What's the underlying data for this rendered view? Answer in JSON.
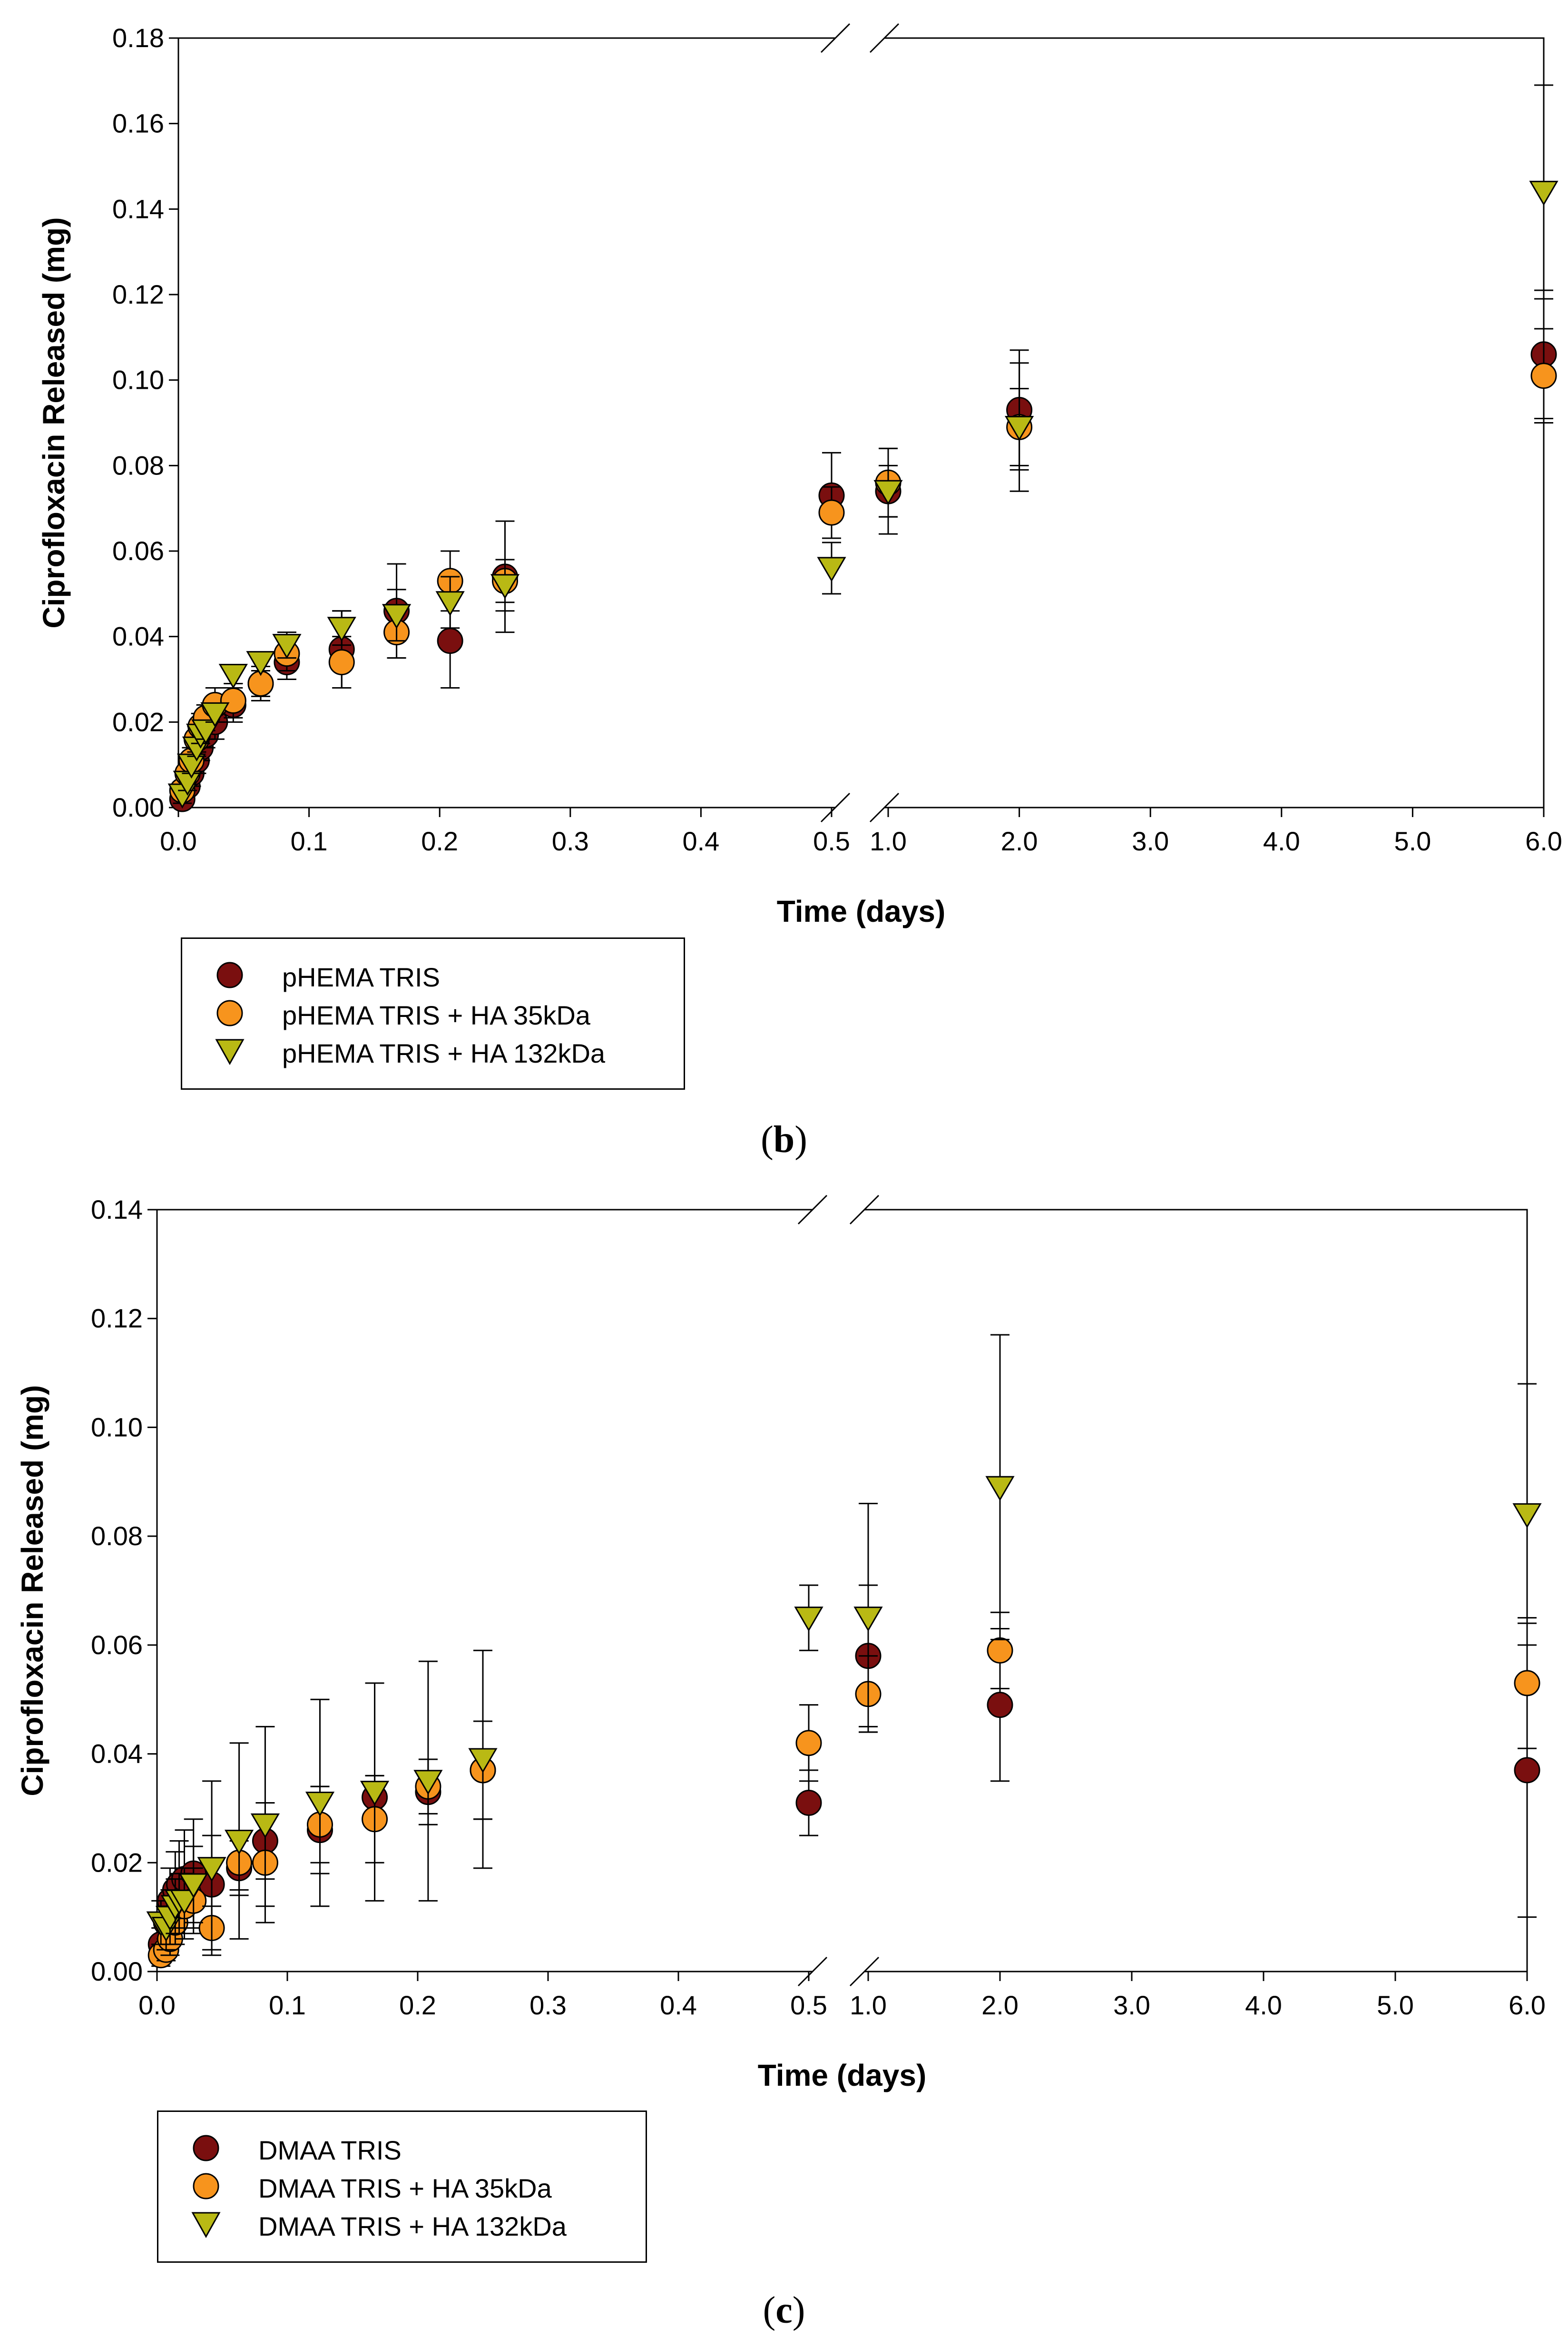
{
  "chart_data": [
    {
      "type": "scatter",
      "panel_label": "b",
      "xlabel": "Time (days)",
      "ylabel": "Ciprofloxacin Released (mg)",
      "ylim": [
        0,
        0.18
      ],
      "yticks": [
        "0.00",
        "0.02",
        "0.04",
        "0.06",
        "0.08",
        "0.10",
        "0.12",
        "0.14",
        "0.16",
        "0.18"
      ],
      "x_axis": {
        "type": "broken",
        "segment1": {
          "range": [
            0,
            0.5
          ],
          "ticks": [
            "0.0",
            "0.1",
            "0.2",
            "0.3",
            "0.4",
            "0.5"
          ]
        },
        "segment2": {
          "range": [
            1,
            6
          ],
          "ticks": [
            "1.0",
            "2.0",
            "3.0",
            "4.0",
            "5.0",
            "6.0"
          ]
        }
      },
      "legend_position": "below",
      "series": [
        {
          "name": "pHEMA TRIS",
          "marker": "circle",
          "color": "#7a0f0f",
          "points": [
            [
              0.003,
              0.002,
              0.002
            ],
            [
              0.007,
              0.005,
              0.002
            ],
            [
              0.01,
              0.008,
              0.003
            ],
            [
              0.014,
              0.011,
              0.003
            ],
            [
              0.017,
              0.014,
              0.003
            ],
            [
              0.021,
              0.017,
              0.003
            ],
            [
              0.028,
              0.02,
              0.004
            ],
            [
              0.042,
              0.024,
              0.004
            ],
            [
              0.063,
              0.029,
              0.004
            ],
            [
              0.083,
              0.034,
              0.004
            ],
            [
              0.125,
              0.037,
              0.009
            ],
            [
              0.167,
              0.046,
              0.011
            ],
            [
              0.208,
              0.039,
              0.011
            ],
            [
              0.25,
              0.054,
              0.013
            ],
            [
              0.5,
              0.073,
              0.01
            ],
            [
              1,
              0.074,
              0.006
            ],
            [
              2,
              0.093,
              0.014
            ],
            [
              6,
              0.106,
              0.015
            ]
          ]
        },
        {
          "name": "pHEMA TRIS + HA 35kDa",
          "marker": "circle",
          "color": "#f7941d",
          "points": [
            [
              0.003,
              0.004,
              0.002
            ],
            [
              0.007,
              0.008,
              0.002
            ],
            [
              0.01,
              0.011,
              0.003
            ],
            [
              0.014,
              0.016,
              0.003
            ],
            [
              0.017,
              0.019,
              0.003
            ],
            [
              0.021,
              0.021,
              0.003
            ],
            [
              0.028,
              0.024,
              0.004
            ],
            [
              0.042,
              0.025,
              0.004
            ],
            [
              0.063,
              0.029,
              0.003
            ],
            [
              0.083,
              0.036,
              0.004
            ],
            [
              0.125,
              0.034,
              0.006
            ],
            [
              0.167,
              0.041,
              0.006
            ],
            [
              0.208,
              0.053,
              0.007
            ],
            [
              0.25,
              0.053,
              0.005
            ],
            [
              0.5,
              0.069,
              0.006
            ],
            [
              1,
              0.076,
              0.008
            ],
            [
              2,
              0.089,
              0.009
            ],
            [
              6,
              0.101,
              0.011
            ]
          ]
        },
        {
          "name": "pHEMA TRIS + HA 132kDa",
          "marker": "triangle-down",
          "color": "#b9b914",
          "points": [
            [
              0.003,
              0.003,
              0.002
            ],
            [
              0.007,
              0.006,
              0.002
            ],
            [
              0.01,
              0.01,
              0.002
            ],
            [
              0.014,
              0.014,
              0.002
            ],
            [
              0.017,
              0.017,
              0.002
            ],
            [
              0.021,
              0.018,
              0.002
            ],
            [
              0.028,
              0.022,
              0.002
            ],
            [
              0.042,
              0.031,
              0.002
            ],
            [
              0.063,
              0.034,
              0.002
            ],
            [
              0.083,
              0.038,
              0.003
            ],
            [
              0.125,
              0.042,
              0.004
            ],
            [
              0.167,
              0.045,
              0.006
            ],
            [
              0.208,
              0.048,
              0.006
            ],
            [
              0.25,
              0.052,
              0.006
            ],
            [
              0.5,
              0.056,
              0.006
            ],
            [
              1,
              0.074,
              0.01
            ],
            [
              2,
              0.089,
              0.015
            ],
            [
              6,
              0.144,
              0.025
            ]
          ]
        }
      ]
    },
    {
      "type": "scatter",
      "panel_label": "c",
      "xlabel": "Time (days)",
      "ylabel": "Ciprofloxacin Released (mg)",
      "ylim": [
        0,
        0.14
      ],
      "yticks": [
        "0.00",
        "0.02",
        "0.04",
        "0.06",
        "0.08",
        "0.10",
        "0.12",
        "0.14"
      ],
      "x_axis": {
        "type": "broken",
        "segment1": {
          "range": [
            0,
            0.5
          ],
          "ticks": [
            "0.0",
            "0.1",
            "0.2",
            "0.3",
            "0.4",
            "0.5"
          ]
        },
        "segment2": {
          "range": [
            1,
            6
          ],
          "ticks": [
            "1.0",
            "2.0",
            "3.0",
            "4.0",
            "5.0",
            "6.0"
          ]
        }
      },
      "legend_position": "below",
      "series": [
        {
          "name": "DMAA TRIS",
          "marker": "circle",
          "color": "#7a0f0f",
          "points": [
            [
              0.003,
              0.005,
              0.003
            ],
            [
              0.007,
              0.009,
              0.004
            ],
            [
              0.01,
              0.013,
              0.006
            ],
            [
              0.014,
              0.015,
              0.007
            ],
            [
              0.017,
              0.016,
              0.008
            ],
            [
              0.021,
              0.017,
              0.009
            ],
            [
              0.028,
              0.018,
              0.01
            ],
            [
              0.042,
              0.016,
              0.009
            ],
            [
              0.063,
              0.019,
              0.005
            ],
            [
              0.083,
              0.024,
              0.007
            ],
            [
              0.125,
              0.026,
              0.008
            ],
            [
              0.167,
              0.032,
              0.004
            ],
            [
              0.208,
              0.033,
              0.006
            ],
            [
              0.25,
              0.037,
              0.009
            ],
            [
              0.5,
              0.031,
              0.006
            ],
            [
              1,
              0.058,
              0.013
            ],
            [
              2,
              0.049,
              0.014
            ],
            [
              6,
              0.037,
              0.027
            ]
          ]
        },
        {
          "name": "DMAA TRIS + HA 35kDa",
          "marker": "circle",
          "color": "#f7941d",
          "points": [
            [
              0.003,
              0.003,
              0.002
            ],
            [
              0.007,
              0.004,
              0.002
            ],
            [
              0.01,
              0.006,
              0.003
            ],
            [
              0.014,
              0.009,
              0.004
            ],
            [
              0.017,
              0.012,
              0.005
            ],
            [
              0.021,
              0.012,
              0.006
            ],
            [
              0.028,
              0.013,
              0.006
            ],
            [
              0.042,
              0.008,
              0.004
            ],
            [
              0.063,
              0.02,
              0.005
            ],
            [
              0.083,
              0.02,
              0.008
            ],
            [
              0.125,
              0.027,
              0.007
            ],
            [
              0.167,
              0.028,
              0.008
            ],
            [
              0.208,
              0.034,
              0.005
            ],
            [
              0.25,
              0.037,
              0.009
            ],
            [
              0.5,
              0.042,
              0.007
            ],
            [
              1,
              0.051,
              0.007
            ],
            [
              2,
              0.059,
              0.007
            ],
            [
              6,
              0.053,
              0.012
            ]
          ]
        },
        {
          "name": "DMAA TRIS + HA 132kDa",
          "marker": "triangle-down",
          "color": "#b9b914",
          "points": [
            [
              0.003,
              0.009,
              0.004
            ],
            [
              0.007,
              0.008,
              0.004
            ],
            [
              0.01,
              0.01,
              0.005
            ],
            [
              0.014,
              0.012,
              0.005
            ],
            [
              0.017,
              0.013,
              0.005
            ],
            [
              0.021,
              0.013,
              0.006
            ],
            [
              0.028,
              0.016,
              0.007
            ],
            [
              0.042,
              0.019,
              0.016
            ],
            [
              0.063,
              0.024,
              0.018
            ],
            [
              0.083,
              0.027,
              0.018
            ],
            [
              0.125,
              0.031,
              0.019
            ],
            [
              0.167,
              0.033,
              0.02
            ],
            [
              0.208,
              0.035,
              0.022
            ],
            [
              0.25,
              0.039,
              0.02
            ],
            [
              0.5,
              0.065,
              0.006
            ],
            [
              1,
              0.065,
              0.021
            ],
            [
              2,
              0.089,
              0.028
            ],
            [
              6,
              0.084,
              0.024
            ]
          ]
        }
      ]
    }
  ],
  "legends": [
    {
      "items": [
        "pHEMA TRIS",
        "pHEMA TRIS + HA 35kDa",
        "pHEMA TRIS + HA 132kDa"
      ]
    },
    {
      "items": [
        "DMAA TRIS",
        "DMAA TRIS + HA 35kDa",
        "DMAA TRIS + HA 132kDa"
      ]
    }
  ],
  "captions": {
    "b": "b",
    "c": "c"
  },
  "colors": {
    "dark_red": "#7a0f0f",
    "orange": "#f7941d",
    "olive": "#b9b914"
  }
}
